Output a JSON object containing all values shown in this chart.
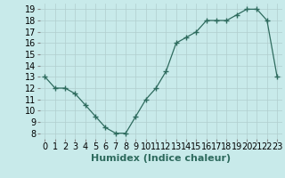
{
  "x": [
    0,
    1,
    2,
    3,
    4,
    5,
    6,
    7,
    8,
    9,
    10,
    11,
    12,
    13,
    14,
    15,
    16,
    17,
    18,
    19,
    20,
    21,
    22,
    23
  ],
  "y": [
    13,
    12,
    12,
    11.5,
    10.5,
    9.5,
    8.5,
    8,
    8,
    9.5,
    11,
    12,
    13.5,
    16,
    16.5,
    17,
    18,
    18,
    18,
    18.5,
    19,
    19,
    18,
    13
  ],
  "line_color": "#2e6b5e",
  "marker": "+",
  "marker_size": 4,
  "background_color": "#c8eaea",
  "grid_color": "#b0cece",
  "xlabel": "Humidex (Indice chaleur)",
  "xlabel_fontsize": 8,
  "tick_fontsize": 7,
  "xlim": [
    -0.5,
    23.5
  ],
  "ylim": [
    7.5,
    19.5
  ],
  "yticks": [
    8,
    9,
    10,
    11,
    12,
    13,
    14,
    15,
    16,
    17,
    18,
    19
  ],
  "xticks": [
    0,
    1,
    2,
    3,
    4,
    5,
    6,
    7,
    8,
    9,
    10,
    11,
    12,
    13,
    14,
    15,
    16,
    17,
    18,
    19,
    20,
    21,
    22,
    23
  ]
}
